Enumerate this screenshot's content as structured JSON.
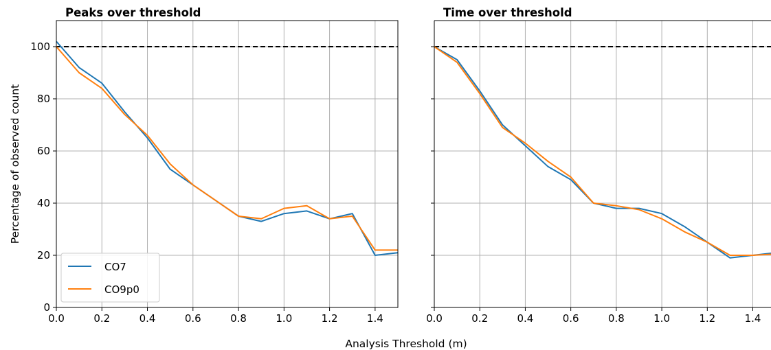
{
  "figure": {
    "ylabel": "Percentage of observed count",
    "xlabel": "Analysis Threshold (m)"
  },
  "colors": {
    "CO7": "#1f77b4",
    "CO9p0": "#ff7f0e",
    "reference": "#000000",
    "grid": "#b0b0b0"
  },
  "chart_data": [
    {
      "type": "line",
      "title": "Peaks over threshold",
      "xlabel": "Analysis Threshold (m)",
      "ylabel": "Percentage of observed count",
      "xlim": [
        0.0,
        1.5
      ],
      "ylim": [
        0,
        110
      ],
      "xticks": [
        0.0,
        0.2,
        0.4,
        0.6,
        0.8,
        1.0,
        1.2,
        1.4
      ],
      "xtick_labels": [
        "0.0",
        "0.2",
        "0.4",
        "0.6",
        "0.8",
        "1.0",
        "1.2",
        "1.4"
      ],
      "yticks": [
        0,
        20,
        40,
        60,
        80,
        100
      ],
      "ytick_labels": [
        "0",
        "20",
        "40",
        "60",
        "80",
        "100"
      ],
      "grid": true,
      "legend": "lower-left",
      "reference_line": {
        "y": 100,
        "style": "dashed"
      },
      "x": [
        0.0,
        0.1,
        0.2,
        0.3,
        0.4,
        0.5,
        0.6,
        0.7,
        0.8,
        0.9,
        1.0,
        1.1,
        1.2,
        1.3,
        1.4,
        1.5
      ],
      "series": [
        {
          "name": "CO7",
          "values": [
            102,
            92,
            86,
            75,
            65,
            53,
            47,
            41,
            35,
            33,
            36,
            37,
            34,
            36,
            20,
            21
          ]
        },
        {
          "name": "CO9p0",
          "values": [
            100,
            90,
            84,
            74,
            66,
            55,
            47,
            41,
            35,
            34,
            38,
            39,
            34,
            35,
            22,
            22
          ]
        }
      ]
    },
    {
      "type": "line",
      "title": "Time over threshold",
      "xlabel": "Analysis Threshold (m)",
      "xlim": [
        0.0,
        1.48
      ],
      "ylim": [
        0,
        110
      ],
      "xticks": [
        0.0,
        0.2,
        0.4,
        0.6,
        0.8,
        1.0,
        1.2,
        1.4
      ],
      "xtick_labels": [
        "0.0",
        "0.2",
        "0.4",
        "0.6",
        "0.8",
        "1.0",
        "1.2",
        "1.4"
      ],
      "yticks": [
        0,
        20,
        40,
        60,
        80,
        100
      ],
      "grid": true,
      "reference_line": {
        "y": 100,
        "style": "dashed"
      },
      "x": [
        0.0,
        0.1,
        0.2,
        0.3,
        0.4,
        0.5,
        0.6,
        0.7,
        0.8,
        0.9,
        1.0,
        1.1,
        1.2,
        1.3,
        1.4,
        1.5
      ],
      "series": [
        {
          "name": "CO7",
          "values": [
            100,
            95,
            83,
            70,
            62,
            54,
            49,
            40,
            38,
            38,
            36,
            31,
            25,
            19,
            20,
            21
          ]
        },
        {
          "name": "CO9p0",
          "values": [
            100,
            94,
            82,
            69,
            63,
            56,
            50,
            40,
            39,
            37.5,
            34,
            29,
            25,
            20,
            20,
            20.5
          ]
        }
      ]
    }
  ]
}
